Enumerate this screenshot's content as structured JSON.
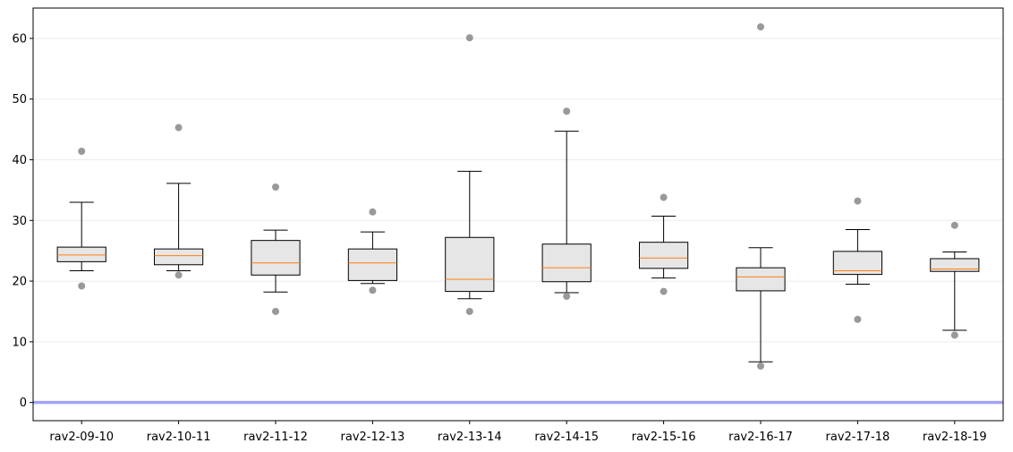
{
  "chart_data": {
    "type": "box",
    "categories": [
      "rav2-09-10",
      "rav2-10-11",
      "rav2-11-12",
      "rav2-12-13",
      "rav2-13-14",
      "rav2-14-15",
      "rav2-15-16",
      "rav2-16-17",
      "rav2-17-18",
      "rav2-18-19"
    ],
    "boxes": [
      {
        "whisker_low": 21.7,
        "q1": 23.2,
        "median": 24.3,
        "q3": 25.6,
        "whisker_high": 33.0,
        "outliers": [
          41.4,
          19.2
        ]
      },
      {
        "whisker_low": 21.7,
        "q1": 22.7,
        "median": 24.2,
        "q3": 25.3,
        "whisker_high": 36.1,
        "outliers": [
          45.3,
          21.0
        ]
      },
      {
        "whisker_low": 18.2,
        "q1": 21.0,
        "median": 23.0,
        "q3": 26.7,
        "whisker_high": 28.4,
        "outliers": [
          35.5,
          15.0
        ]
      },
      {
        "whisker_low": 19.6,
        "q1": 20.1,
        "median": 23.0,
        "q3": 25.3,
        "whisker_high": 28.1,
        "outliers": [
          31.4,
          18.5
        ]
      },
      {
        "whisker_low": 17.1,
        "q1": 18.3,
        "median": 20.3,
        "q3": 27.2,
        "whisker_high": 38.1,
        "outliers": [
          60.1,
          15.0
        ]
      },
      {
        "whisker_low": 18.1,
        "q1": 19.9,
        "median": 22.2,
        "q3": 26.1,
        "whisker_high": 44.7,
        "outliers": [
          48.0,
          17.5
        ]
      },
      {
        "whisker_low": 20.5,
        "q1": 22.1,
        "median": 23.8,
        "q3": 26.4,
        "whisker_high": 30.7,
        "outliers": [
          33.8,
          18.3
        ]
      },
      {
        "whisker_low": 6.7,
        "q1": 18.4,
        "median": 20.7,
        "q3": 22.2,
        "whisker_high": 25.5,
        "outliers": [
          61.9,
          6.0
        ]
      },
      {
        "whisker_low": 19.5,
        "q1": 21.1,
        "median": 21.7,
        "q3": 24.9,
        "whisker_high": 28.5,
        "outliers": [
          33.2,
          13.7
        ]
      },
      {
        "whisker_low": 11.9,
        "q1": 21.6,
        "median": 22.0,
        "q3": 23.7,
        "whisker_high": 24.8,
        "outliers": [
          29.2,
          11.1
        ]
      }
    ],
    "ylim": [
      -3.0,
      65.0
    ],
    "yticks": [
      0,
      10,
      20,
      30,
      40,
      50,
      60
    ],
    "reference_line": {
      "y": 0,
      "color": "#a3a3f5"
    },
    "grid": "horizontal",
    "colors": {
      "box_fill": "#e6e6e6",
      "median": "#ff7f0e",
      "outlier": "#999999",
      "grid": "#ebebeb"
    },
    "title": "",
    "xlabel": "",
    "ylabel": ""
  }
}
